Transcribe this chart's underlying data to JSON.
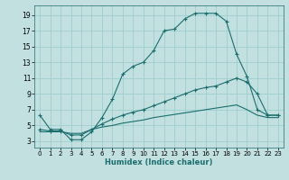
{
  "xlabel": "Humidex (Indice chaleur)",
  "x_ticks": [
    0,
    1,
    2,
    3,
    4,
    5,
    6,
    7,
    8,
    9,
    10,
    11,
    12,
    13,
    14,
    15,
    16,
    17,
    18,
    19,
    20,
    21,
    22,
    23
  ],
  "y_ticks": [
    3,
    5,
    7,
    9,
    11,
    13,
    15,
    17,
    19
  ],
  "xlim": [
    -0.5,
    23.5
  ],
  "ylim": [
    2.2,
    20.2
  ],
  "bg_color": "#c2e0e0",
  "grid_color": "#9ecece",
  "line_color": "#1a6e6e",
  "curve1_x": [
    0,
    1,
    2,
    3,
    4,
    5,
    6,
    7,
    8,
    9,
    10,
    11,
    12,
    13,
    14,
    15,
    16,
    17,
    18,
    19,
    20,
    21,
    22,
    23
  ],
  "curve1_y": [
    6.3,
    4.5,
    4.5,
    3.2,
    3.2,
    4.2,
    6.0,
    8.3,
    11.5,
    12.5,
    13.0,
    14.5,
    17.0,
    17.2,
    18.5,
    19.2,
    19.2,
    19.2,
    18.2,
    14.0,
    11.2,
    7.0,
    6.3,
    6.3
  ],
  "curve2_x": [
    0,
    1,
    2,
    3,
    4,
    5,
    6,
    7,
    8,
    9,
    10,
    11,
    12,
    13,
    14,
    15,
    16,
    17,
    18,
    19,
    20,
    21,
    22,
    23
  ],
  "curve2_y": [
    4.5,
    4.3,
    4.3,
    3.8,
    3.8,
    4.5,
    5.2,
    5.8,
    6.3,
    6.7,
    7.0,
    7.5,
    8.0,
    8.5,
    9.0,
    9.5,
    9.8,
    10.0,
    10.5,
    11.0,
    10.5,
    9.0,
    6.3,
    6.3
  ],
  "curve3_x": [
    0,
    1,
    2,
    3,
    4,
    5,
    6,
    7,
    8,
    9,
    10,
    11,
    12,
    13,
    14,
    15,
    16,
    17,
    18,
    19,
    20,
    21,
    22,
    23
  ],
  "curve3_y": [
    4.2,
    4.2,
    4.2,
    4.0,
    4.0,
    4.5,
    4.8,
    5.0,
    5.3,
    5.5,
    5.7,
    6.0,
    6.2,
    6.4,
    6.6,
    6.8,
    7.0,
    7.2,
    7.4,
    7.6,
    7.0,
    6.3,
    6.0,
    6.0
  ]
}
